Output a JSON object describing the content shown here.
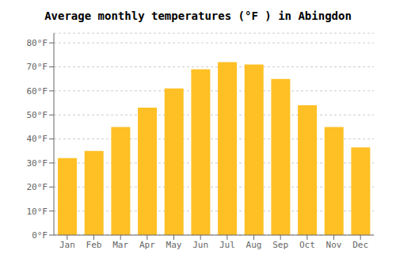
{
  "chart_data": {
    "type": "bar",
    "title": "Average monthly temperatures (°F ) in Abingdon",
    "categories": [
      "Jan",
      "Feb",
      "Mar",
      "Apr",
      "May",
      "Jun",
      "Jul",
      "Aug",
      "Sep",
      "Oct",
      "Nov",
      "Dec"
    ],
    "values": [
      32,
      35,
      45,
      53,
      61,
      69,
      72,
      71,
      65,
      54,
      45,
      36.5
    ],
    "color": "#FFC025",
    "ylim": [
      0,
      84
    ],
    "yticks": [
      {
        "value": 0,
        "label": "0°F"
      },
      {
        "value": 10,
        "label": "10°F"
      },
      {
        "value": 20,
        "label": "20°F"
      },
      {
        "value": 30,
        "label": "30°F"
      },
      {
        "value": 40,
        "label": "40°F"
      },
      {
        "value": 50,
        "label": "50°F"
      },
      {
        "value": 60,
        "label": "60°F"
      },
      {
        "value": 70,
        "label": "70°F"
      },
      {
        "value": 80,
        "label": "80°F"
      }
    ],
    "grid": true
  }
}
